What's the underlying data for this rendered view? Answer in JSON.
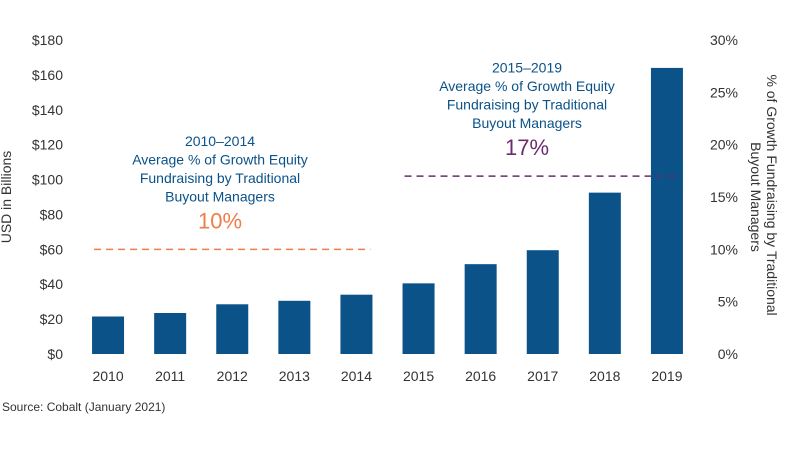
{
  "chart_data": {
    "type": "bar",
    "categories": [
      "2010",
      "2011",
      "2012",
      "2013",
      "2014",
      "2015",
      "2016",
      "2017",
      "2018",
      "2019"
    ],
    "values": [
      21.5,
      23.5,
      28.5,
      30.5,
      34,
      40.5,
      51.5,
      59.5,
      92.5,
      164
    ],
    "ylabel": "USD in Billions",
    "ylim": [
      0,
      180
    ],
    "yticks": [
      "$0",
      "$20",
      "$40",
      "$60",
      "$80",
      "$100",
      "$120",
      "$140",
      "$160",
      "$180"
    ],
    "y2label": "% of Growth Fundraising by Traditional Buyout Managers",
    "y2lim": [
      0,
      30
    ],
    "y2ticks": [
      "0%",
      "5%",
      "10%",
      "15%",
      "20%",
      "25%",
      "30%"
    ],
    "bar_color": "#0b5288",
    "grid": false,
    "annotations": [
      {
        "period": "2010–2014",
        "lines": [
          "Average % of Growth Equity",
          "Fundraising by Traditional",
          "Buyout Managers"
        ],
        "value_label": "10%",
        "value": 10,
        "range": [
          "2010",
          "2014"
        ],
        "text_color": "#0b5288",
        "value_color": "#ef7d4a",
        "line_color": "#ef7d4a"
      },
      {
        "period": "2015–2019",
        "lines": [
          "Average % of Growth Equity",
          "Fundraising by Traditional",
          "Buyout Managers"
        ],
        "value_label": "17%",
        "value": 17,
        "range": [
          "2015",
          "2019"
        ],
        "text_color": "#0b5288",
        "value_color": "#6b2c6e",
        "line_color": "#6b2c6e"
      }
    ]
  },
  "source": "Source: Cobalt (January 2021)"
}
